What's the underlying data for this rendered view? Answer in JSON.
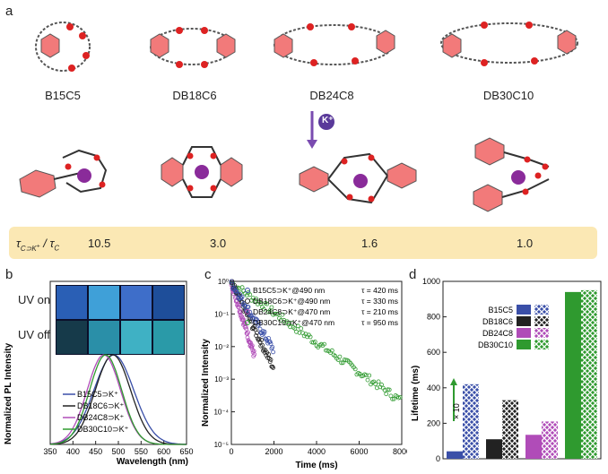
{
  "panel_a": {
    "letter": "a",
    "molecules": [
      "B15C5",
      "DB18C6",
      "DB24C8",
      "DB30C10"
    ],
    "cation_label": "K⁺",
    "ratio_label": "τ",
    "ratios": [
      "10.5",
      "3.0",
      "1.6",
      "1.0"
    ]
  },
  "panel_b": {
    "letter": "b",
    "uv_on": "UV on",
    "uv_off": "UV off",
    "legend": [
      "B15C5⊃K⁺",
      "DB18C6⊃K⁺",
      "DB24C8⊃K⁺",
      "DB30C10⊃K⁺"
    ]
  },
  "panel_c": {
    "letter": "c",
    "legend": [
      "B15C5⊃K⁺@490 nm",
      "DB18C6⊃K⁺@490 nm",
      "DB24C8⊃K⁺@470 nm",
      "DB30C10⊃K⁺@470 nm"
    ],
    "taus": [
      "τ = 420 ms",
      "τ = 330 ms",
      "τ = 210 ms",
      "τ = 950 ms"
    ]
  },
  "panel_d": {
    "letter": "d",
    "multiplier": "× 10"
  },
  "colors": {
    "blue": "#3a4fa8",
    "black": "#222222",
    "magenta": "#b04cb8",
    "green": "#2f9a2f",
    "ring": "#f27a7a",
    "band": "#fbe8b4",
    "k_ion": "#8a2b9a"
  },
  "chart_data": [
    {
      "type": "line",
      "title": "",
      "xlabel": "Wavelength (nm)",
      "ylabel": "Normalized PL Intensity",
      "xlim": [
        350,
        650
      ],
      "xticks": [
        350,
        400,
        450,
        500,
        550,
        600,
        650
      ],
      "series": [
        {
          "name": "B15C5⊃K⁺",
          "color": "#3a4fa8",
          "peak": 490,
          "width": 62
        },
        {
          "name": "DB18C6⊃K⁺",
          "color": "#222222",
          "peak": 488,
          "width": 55
        },
        {
          "name": "DB24C8⊃K⁺",
          "color": "#b04cb8",
          "peak": 468,
          "width": 52
        },
        {
          "name": "DB30C10⊃K⁺",
          "color": "#2f9a2f",
          "peak": 472,
          "width": 50
        }
      ]
    },
    {
      "type": "scatter",
      "title": "",
      "xlabel": "Time (ms)",
      "ylabel": "Normalized Intensity",
      "xlim": [
        0,
        8000
      ],
      "ylim_log10": [
        -5,
        0
      ],
      "xticks": [
        0,
        2000,
        4000,
        6000,
        8000
      ],
      "yticks": [
        "10⁰",
        "10⁻¹",
        "10⁻²",
        "10⁻³",
        "10⁻⁴",
        "10⁻⁵"
      ],
      "series": [
        {
          "name": "B15C5⊃K⁺@490 nm",
          "color": "#3a4fa8",
          "tau": 420,
          "end": 2000
        },
        {
          "name": "DB18C6⊃K⁺@490 nm",
          "color": "#222222",
          "tau": 330,
          "end": 2000
        },
        {
          "name": "DB24C8⊃K⁺@470 nm",
          "color": "#b04cb8",
          "tau": 210,
          "end": 1100
        },
        {
          "name": "DB30C10⊃K⁺@470 nm",
          "color": "#2f9a2f",
          "tau": 950,
          "end": 8000
        }
      ]
    },
    {
      "type": "bar",
      "title": "",
      "ylabel": "Lifetime (ms)",
      "ylim": [
        0,
        1000
      ],
      "yticks": [
        0,
        200,
        400,
        600,
        800,
        1000
      ],
      "categories": [
        "B15C5",
        "DB18C6",
        "DB24C8",
        "DB30C10"
      ],
      "series": [
        {
          "name": "",
          "values": [
            42,
            110,
            135,
            940
          ]
        },
        {
          "name": "",
          "values": [
            420,
            330,
            210,
            950
          ]
        }
      ],
      "colors": [
        "#3a4fa8",
        "#222222",
        "#b04cb8",
        "#2f9a2f"
      ]
    }
  ]
}
